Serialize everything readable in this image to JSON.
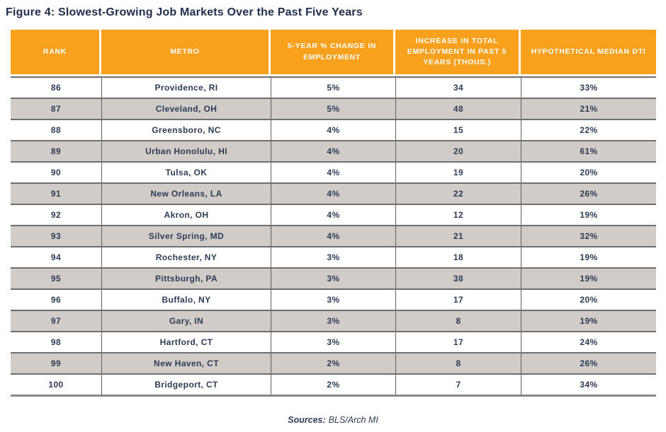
{
  "title": "Figure 4: Slowest-Growing Job Markets Over the Past Five Years",
  "chart_data": {
    "type": "table",
    "title": "Figure 4: Slowest-Growing Job Markets Over the Past Five Years",
    "columns": [
      "RANK",
      "METRO",
      "5-YEAR % CHANGE IN EMPLOYMENT",
      "INCREASE IN TOTAL EMPLOYMENT IN PAST 5 YEARS (THOUS.)",
      "HYPOTHETICAL MEDIAN DTI"
    ],
    "rows": [
      [
        "86",
        "Providence, RI",
        "5%",
        "34",
        "33%"
      ],
      [
        "87",
        "Cleveland, OH",
        "5%",
        "48",
        "21%"
      ],
      [
        "88",
        "Greensboro, NC",
        "4%",
        "15",
        "22%"
      ],
      [
        "89",
        "Urban Honolulu, HI",
        "4%",
        "20",
        "61%"
      ],
      [
        "90",
        "Tulsa, OK",
        "4%",
        "19",
        "20%"
      ],
      [
        "91",
        "New Orleans, LA",
        "4%",
        "22",
        "26%"
      ],
      [
        "92",
        "Akron, OH",
        "4%",
        "12",
        "19%"
      ],
      [
        "93",
        "Silver Spring, MD",
        "4%",
        "21",
        "32%"
      ],
      [
        "94",
        "Rochester, NY",
        "3%",
        "18",
        "19%"
      ],
      [
        "95",
        "Pittsburgh, PA",
        "3%",
        "38",
        "19%"
      ],
      [
        "96",
        "Buffalo, NY",
        "3%",
        "17",
        "20%"
      ],
      [
        "97",
        "Gary, IN",
        "3%",
        "8",
        "19%"
      ],
      [
        "98",
        "Hartford, CT",
        "3%",
        "17",
        "24%"
      ],
      [
        "99",
        "New Haven, CT",
        "2%",
        "8",
        "26%"
      ],
      [
        "100",
        "Bridgeport, CT",
        "2%",
        "7",
        "34%"
      ]
    ]
  },
  "sources": {
    "label": "Sources:",
    "value": "BLS/Arch MI"
  },
  "colors": {
    "header_bg": "#F9A11C",
    "header_text": "#FFFFFF",
    "title_navy": "#1F2E4D",
    "body_navy": "#2D3C57",
    "alt_row_gray": "#D2CCC8",
    "row_line": "#6F6F6F"
  }
}
